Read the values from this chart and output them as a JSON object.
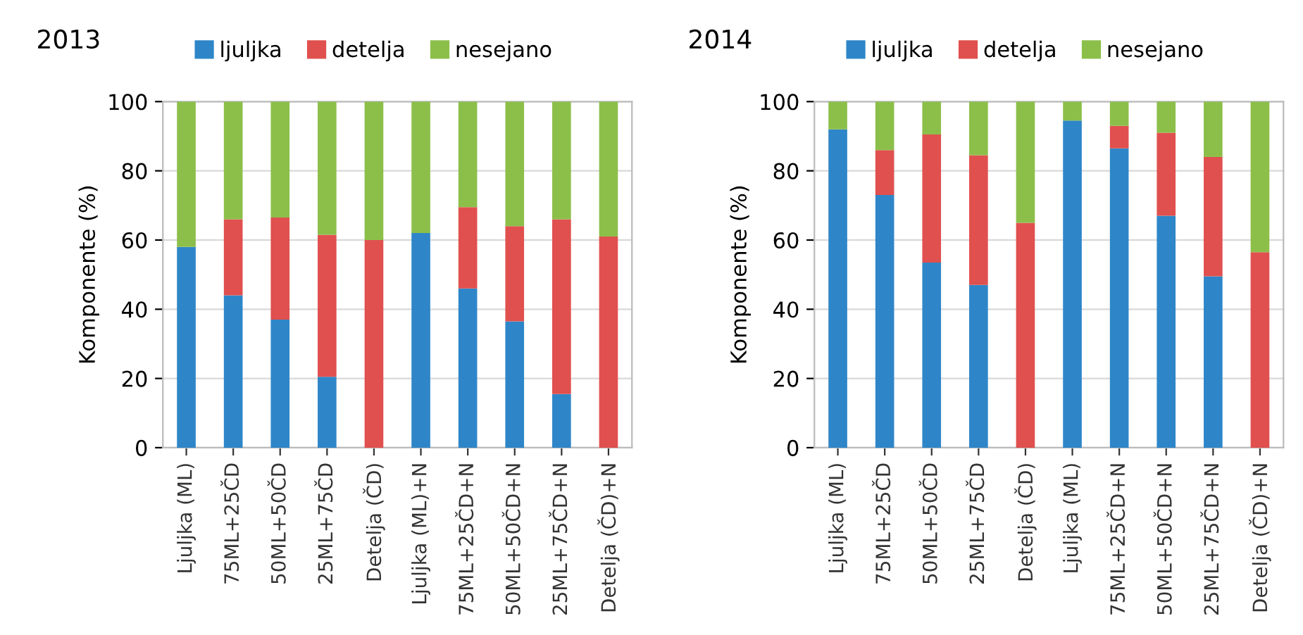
{
  "chart_data": [
    {
      "type": "bar",
      "stacked": true,
      "title": "2013",
      "ylabel": "Komponente (%)",
      "categories": [
        "Ljuljka (ML)",
        "75ML+25ČD",
        "50ML+50ČD",
        "25ML+75ČD",
        "Detelja (ČD)",
        "Ljuljka (ML)+N",
        "75ML+25ČD+N",
        "50ML+50ČD+N",
        "25ML+75ČD+N",
        "Detelja (ČD)+N"
      ],
      "series": [
        {
          "name": "ljuljka",
          "color": "#2e86c8",
          "values": [
            58,
            44,
            37,
            20.5,
            0,
            62,
            46,
            36.5,
            15.5,
            0
          ]
        },
        {
          "name": "detelja",
          "color": "#e0504e",
          "values": [
            0,
            22,
            29.5,
            41,
            60,
            0,
            23.5,
            27.5,
            50.5,
            61
          ]
        },
        {
          "name": "nesejano",
          "color": "#8cbf4a",
          "values": [
            42,
            34,
            33.5,
            38.5,
            40,
            38,
            30.5,
            36,
            34,
            39
          ]
        }
      ],
      "ylim": [
        0,
        100
      ],
      "yticks": [
        0,
        20,
        40,
        60,
        80,
        100
      ],
      "grid": "y",
      "legend": "top"
    },
    {
      "type": "bar",
      "stacked": true,
      "title": "2014",
      "ylabel": "Komponente (%)",
      "categories": [
        "Ljuljka (ML)",
        "75ML+25ČD",
        "50ML+50ČD",
        "25ML+75ČD",
        "Detelja (ČD)",
        "Ljuljka (ML)",
        "75ML+25ČD+N",
        "50ML+50ČD+N",
        "25ML+75ČD+N",
        "Detelja (ČD)+N"
      ],
      "series": [
        {
          "name": "ljuljka",
          "color": "#2e86c8",
          "values": [
            92,
            73,
            53.5,
            47,
            0,
            94.5,
            86.5,
            67,
            49.5,
            0
          ]
        },
        {
          "name": "detelja",
          "color": "#e0504e",
          "values": [
            0,
            13,
            37,
            37.5,
            65,
            0,
            6.5,
            24,
            34.5,
            56.5
          ]
        },
        {
          "name": "nesejano",
          "color": "#8cbf4a",
          "values": [
            8,
            14,
            9.5,
            15.5,
            35,
            5.5,
            7,
            9,
            16,
            43.5
          ]
        }
      ],
      "ylim": [
        0,
        100
      ],
      "yticks": [
        0,
        20,
        40,
        60,
        80,
        100
      ],
      "grid": "y",
      "legend": "top"
    }
  ]
}
